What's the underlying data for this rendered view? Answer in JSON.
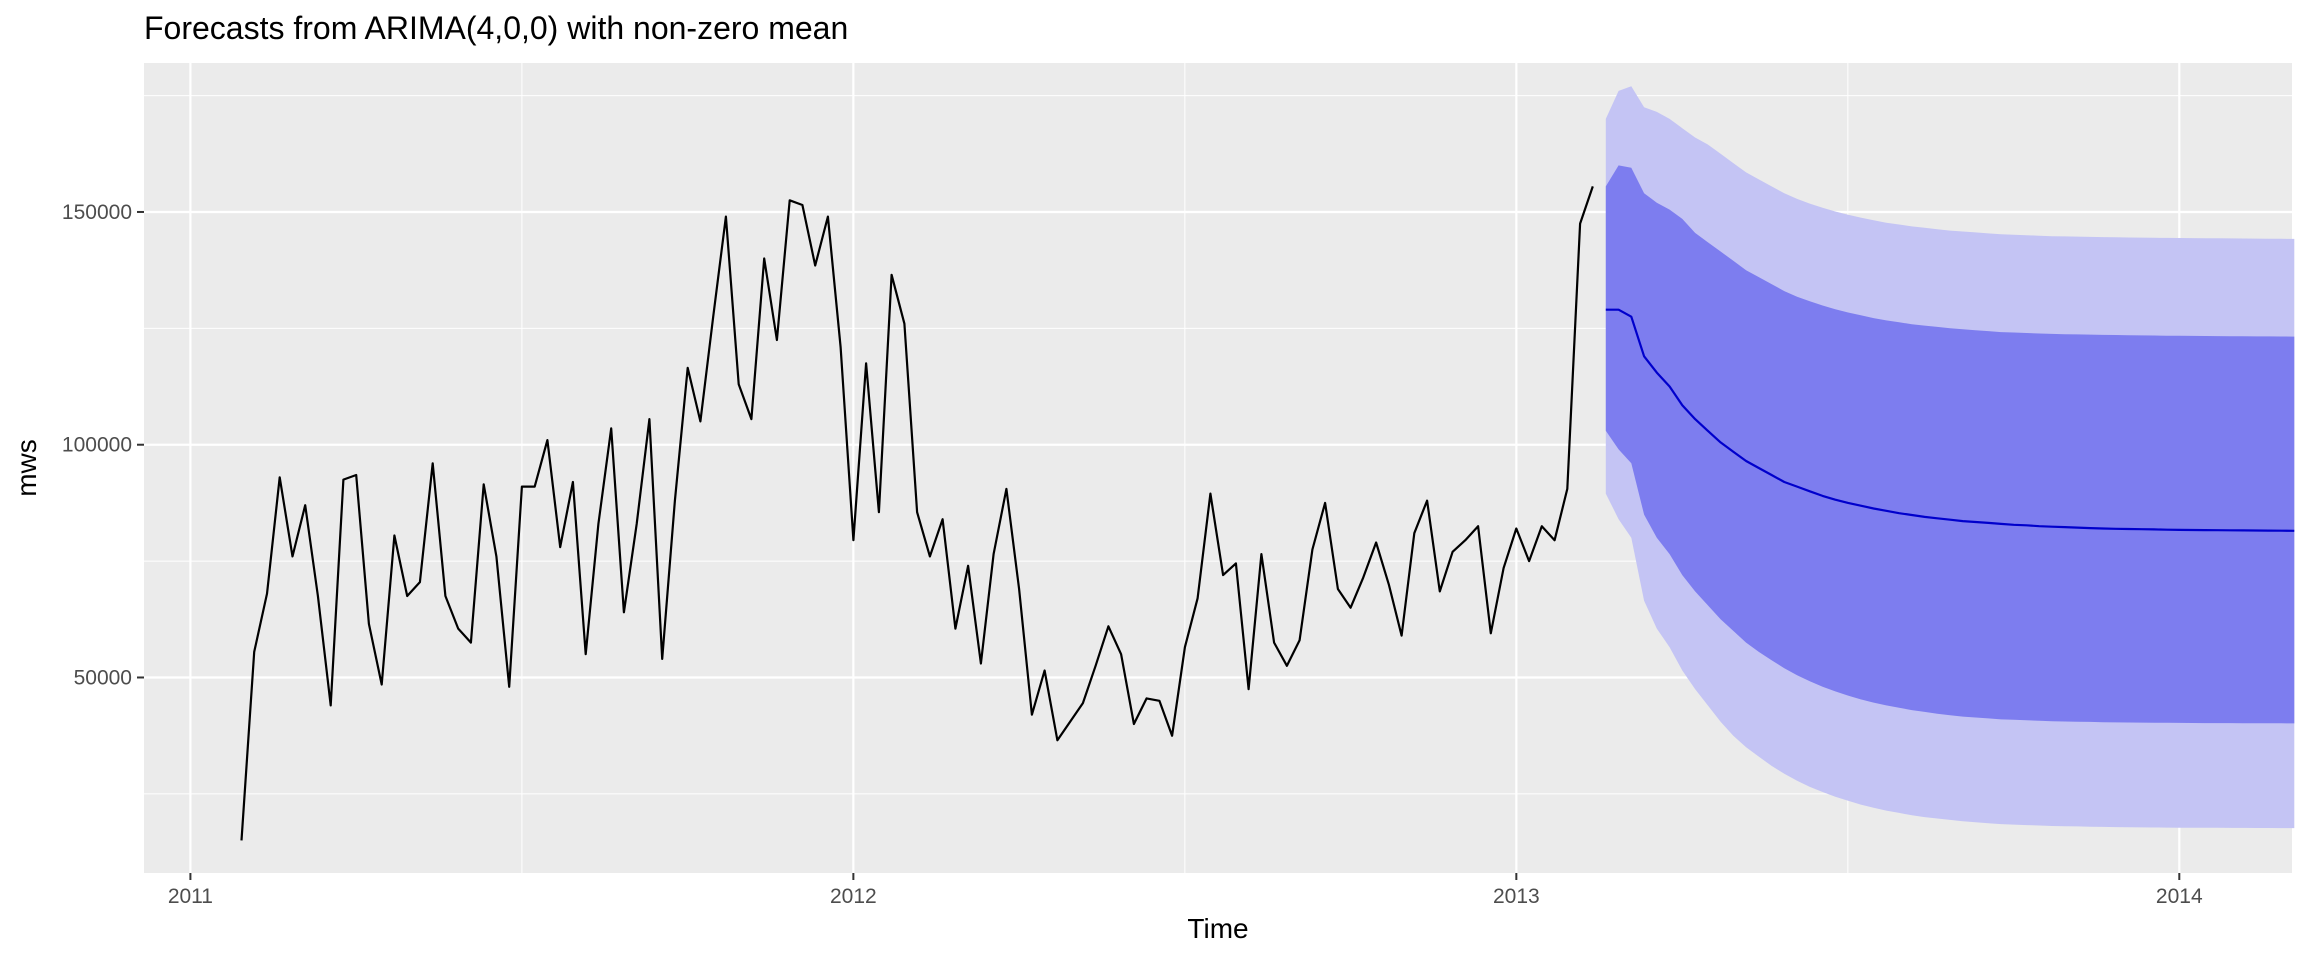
{
  "chart_data": {
    "type": "line",
    "title": "Forecasts from ARIMA(4,0,0) with non-zero mean",
    "xlabel": "Time",
    "ylabel": "mws",
    "xlim": [
      2010.93,
      2014.17
    ],
    "ylim": [
      8000,
      182000
    ],
    "x_ticks": [
      2011,
      2012,
      2013,
      2014
    ],
    "x_tick_labels": [
      "2011",
      "2012",
      "2013",
      "2014"
    ],
    "y_ticks": [
      50000,
      100000,
      150000
    ],
    "y_tick_labels": [
      "50000",
      "100000",
      "150000"
    ],
    "grid": true,
    "legend": "none",
    "observed": {
      "start": 2011.077,
      "step": 0.01923,
      "values": [
        15000,
        55500,
        68000,
        93000,
        76000,
        87000,
        67500,
        44000,
        92500,
        93500,
        61500,
        48500,
        80500,
        67500,
        70500,
        96000,
        67500,
        60500,
        57500,
        91500,
        76000,
        48000,
        91000,
        91000,
        101000,
        78000,
        92000,
        55000,
        83000,
        103500,
        64000,
        83000,
        105500,
        54000,
        88000,
        116500,
        105000,
        127500,
        149000,
        113000,
        105500,
        140000,
        122500,
        152500,
        151500,
        138500,
        149000,
        121000,
        79500,
        117500,
        85500,
        136500,
        126000,
        85500,
        76000,
        84000,
        60500,
        74000,
        53000,
        76500,
        90500,
        69000,
        42000,
        51500,
        36500,
        40500,
        44500,
        52500,
        61000,
        55000,
        40000,
        45500,
        45000,
        37500,
        56500,
        67000,
        89500,
        72000,
        74500,
        47500,
        76500,
        57500,
        52500,
        58000,
        77500,
        87500,
        69000,
        65000,
        71500,
        79000,
        70000,
        59000,
        81000,
        88000,
        68500,
        77000,
        79500,
        82500,
        59500,
        73500,
        82000,
        75000,
        82500,
        79500,
        90500,
        147500,
        155500
      ]
    },
    "forecast": {
      "start": 2013.135,
      "step": 0.01923,
      "mean": [
        129000,
        129000,
        127500,
        119000,
        115500,
        112500,
        108500,
        105500,
        103000,
        100500,
        98500,
        96500,
        95000,
        93500,
        92000,
        91000,
        90000,
        89000,
        88200,
        87500,
        86900,
        86300,
        85800,
        85300,
        84900,
        84500,
        84200,
        83900,
        83600,
        83400,
        83200,
        83000,
        82800,
        82700,
        82500,
        82400,
        82300,
        82200,
        82100,
        82000,
        81950,
        81900,
        81850,
        81800,
        81750,
        81700,
        81680,
        81660,
        81640,
        81620,
        81600,
        81580,
        81560,
        81540,
        81520
      ],
      "lower80": [
        103000,
        99000,
        96000,
        85000,
        80000,
        76500,
        72000,
        68500,
        65500,
        62500,
        60000,
        57500,
        55500,
        53700,
        52000,
        50500,
        49200,
        48000,
        47000,
        46100,
        45300,
        44600,
        44000,
        43500,
        43000,
        42600,
        42200,
        41900,
        41600,
        41400,
        41200,
        41000,
        40900,
        40800,
        40700,
        40600,
        40550,
        40500,
        40450,
        40400,
        40360,
        40330,
        40300,
        40280,
        40260,
        40240,
        40220,
        40210,
        40200,
        40190,
        40180,
        40170,
        40160,
        40150,
        40140
      ],
      "upper80": [
        155500,
        160000,
        159500,
        154000,
        152000,
        150500,
        148500,
        145500,
        143500,
        141500,
        139500,
        137500,
        136000,
        134500,
        133000,
        131800,
        130800,
        129900,
        129100,
        128400,
        127800,
        127200,
        126700,
        126300,
        125900,
        125600,
        125300,
        125000,
        124800,
        124600,
        124400,
        124200,
        124100,
        124000,
        123900,
        123800,
        123750,
        123700,
        123650,
        123600,
        123560,
        123520,
        123490,
        123460,
        123430,
        123400,
        123380,
        123360,
        123340,
        123320,
        123300,
        123280,
        123260,
        123240,
        123220
      ],
      "lower95": [
        89500,
        84000,
        80000,
        66500,
        60500,
        56500,
        51500,
        47500,
        44000,
        40500,
        37500,
        35000,
        33000,
        31000,
        29300,
        27800,
        26500,
        25400,
        24400,
        23500,
        22700,
        22000,
        21400,
        20900,
        20400,
        20000,
        19700,
        19400,
        19100,
        18900,
        18700,
        18500,
        18400,
        18300,
        18200,
        18100,
        18050,
        18000,
        17950,
        17900,
        17860,
        17830,
        17800,
        17780,
        17760,
        17740,
        17720,
        17710,
        17700,
        17690,
        17680,
        17670,
        17660,
        17650,
        17640
      ],
      "upper95": [
        170000,
        176000,
        177000,
        172500,
        171500,
        170000,
        168000,
        166000,
        164500,
        162500,
        160500,
        158500,
        157000,
        155500,
        154000,
        152800,
        151800,
        150900,
        150100,
        149400,
        148800,
        148200,
        147700,
        147300,
        146900,
        146600,
        146300,
        146000,
        145800,
        145600,
        145400,
        145200,
        145100,
        145000,
        144900,
        144800,
        144750,
        144700,
        144650,
        144600,
        144560,
        144520,
        144490,
        144460,
        144430,
        144400,
        144380,
        144360,
        144340,
        144320,
        144300,
        144280,
        144260,
        144240,
        144220
      ]
    },
    "colors": {
      "panel_bg": "#EBEBEB",
      "grid": "#FFFFFF",
      "observed_line": "#000000",
      "forecast_line": "#0000CC",
      "band80": "#7D7DEF",
      "band95": "#C4C4F4",
      "tick_text": "#4D4D4D",
      "tick_mark": "#333333"
    }
  }
}
